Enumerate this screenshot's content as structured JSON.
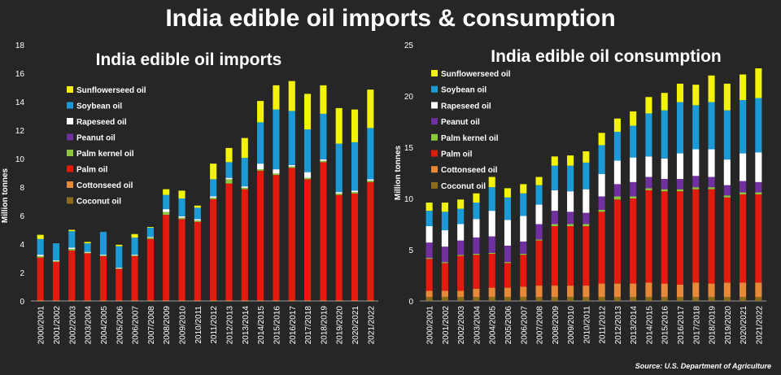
{
  "title": "India edible oil imports & consumption",
  "source": "Source: U.S. Department of Agriculture",
  "colors": {
    "Sunflowerseed oil": "#f2f20a",
    "Soybean oil": "#1c9ad6",
    "Rapeseed oil": "#ffffff",
    "Peanut oil": "#7030a0",
    "Palm kernel oil": "#8dc63f",
    "Palm oil": "#e41a0e",
    "Cottonseed oil": "#e8893a",
    "Coconut oil": "#8c6d1f"
  },
  "chart_data": [
    {
      "type": "bar",
      "stacked": true,
      "title": "India edible oil imports",
      "ylabel": "Million tonnes",
      "ylim": [
        0,
        18
      ],
      "yticks": [
        0,
        2,
        4,
        6,
        8,
        10,
        12,
        14,
        16,
        18
      ],
      "legend_placement": "top-left",
      "categories": [
        "2000/2001",
        "2001/2002",
        "2002/2003",
        "2003/2004",
        "2004/2005",
        "2005/2006",
        "2006/2007",
        "2007/2008",
        "2008/2009",
        "2009/2010",
        "2010/2011",
        "2011/2012",
        "2012/2013",
        "2013/2014",
        "2014/2015",
        "2015/2016",
        "2016/2017",
        "2017/2018",
        "2018/2019",
        "2019/2020",
        "2020/2021",
        "2021/2022"
      ],
      "legend": [
        "Sunflowerseed oil",
        "Soybean oil",
        "Rapeseed oil",
        "Peanut oil",
        "Palm kernel oil",
        "Palm oil",
        "Cottonseed oil",
        "Coconut oil"
      ],
      "series": [
        {
          "name": "Coconut oil",
          "values": [
            0,
            0,
            0,
            0,
            0,
            0,
            0,
            0,
            0,
            0,
            0,
            0,
            0,
            0,
            0,
            0,
            0,
            0,
            0,
            0,
            0,
            0
          ]
        },
        {
          "name": "Cottonseed oil",
          "values": [
            0.05,
            0.05,
            0.05,
            0.05,
            0.05,
            0.05,
            0.05,
            0.05,
            0.05,
            0.05,
            0.05,
            0.05,
            0.05,
            0.05,
            0.05,
            0.05,
            0.05,
            0.05,
            0.05,
            0.05,
            0.05,
            0.05
          ]
        },
        {
          "name": "Palm oil",
          "values": [
            3.0,
            2.7,
            3.5,
            3.3,
            3.1,
            2.2,
            3.1,
            4.3,
            6.0,
            5.7,
            5.5,
            7.1,
            8.2,
            7.8,
            9.1,
            8.8,
            9.3,
            8.5,
            9.7,
            7.4,
            7.5,
            8.3
          ]
        },
        {
          "name": "Palm kernel oil",
          "values": [
            0.1,
            0.05,
            0.1,
            0.05,
            0.05,
            0.05,
            0.05,
            0.1,
            0.2,
            0.1,
            0.1,
            0.1,
            0.3,
            0.1,
            0.1,
            0.1,
            0.1,
            0.1,
            0.1,
            0.1,
            0.1,
            0.1
          ]
        },
        {
          "name": "Peanut oil",
          "values": [
            0,
            0,
            0,
            0,
            0,
            0,
            0,
            0,
            0,
            0,
            0,
            0,
            0,
            0,
            0,
            0,
            0,
            0,
            0,
            0,
            0,
            0
          ]
        },
        {
          "name": "Rapeseed oil",
          "values": [
            0.1,
            0.05,
            0.1,
            0.05,
            0.05,
            0.05,
            0.05,
            0.05,
            0.2,
            0.1,
            0.1,
            0.1,
            0.1,
            0.1,
            0.4,
            0.3,
            0.1,
            0.4,
            0.1,
            0.1,
            0.1,
            0.1
          ]
        },
        {
          "name": "Soybean oil",
          "values": [
            1.1,
            1.2,
            1.15,
            0.6,
            1.6,
            1.5,
            1.2,
            0.65,
            1.0,
            1.25,
            0.8,
            1.2,
            1.1,
            2.0,
            2.9,
            4.2,
            3.8,
            3.0,
            3.2,
            3.4,
            3.4,
            3.6
          ]
        },
        {
          "name": "Sunflowerseed oil",
          "values": [
            0.3,
            0,
            0.1,
            0.1,
            0,
            0.1,
            0.25,
            0.05,
            0.4,
            0.55,
            0.15,
            1.1,
            1.0,
            1.4,
            1.5,
            1.7,
            2.1,
            2.5,
            2.0,
            2.5,
            2.3,
            2.7
          ]
        }
      ]
    },
    {
      "type": "bar",
      "stacked": true,
      "title": "India edible oil consumption",
      "ylabel": "Million tonnes",
      "ylim": [
        0,
        25
      ],
      "yticks": [
        0,
        5,
        10,
        15,
        20,
        25
      ],
      "legend_placement": "top-left",
      "categories": [
        "2000/2001",
        "2001/2002",
        "2002/2003",
        "2003/2004",
        "2004/2005",
        "2005/2006",
        "2006/2007",
        "2007/2008",
        "2008/2009",
        "2009/2010",
        "2010/2011",
        "2011/2012",
        "2012/2013",
        "2013/2014",
        "2014/2015",
        "2015/2016",
        "2016/2017",
        "2017/2018",
        "2018/2019",
        "2019/2020",
        "2020/2021",
        "2021/2022"
      ],
      "legend": [
        "Sunflowerseed oil",
        "Soybean oil",
        "Rapeseed oil",
        "Peanut oil",
        "Palm kernel oil",
        "Palm oil",
        "Cottonseed oil",
        "Coconut oil"
      ],
      "series": [
        {
          "name": "Coconut oil",
          "values": [
            0.4,
            0.4,
            0.4,
            0.4,
            0.4,
            0.4,
            0.4,
            0.4,
            0.4,
            0.4,
            0.4,
            0.4,
            0.4,
            0.4,
            0.4,
            0.4,
            0.4,
            0.4,
            0.4,
            0.4,
            0.4,
            0.4
          ]
        },
        {
          "name": "Cottonseed oil",
          "values": [
            0.6,
            0.6,
            0.6,
            0.8,
            0.9,
            0.9,
            1.0,
            1.1,
            1.1,
            1.1,
            1.1,
            1.3,
            1.3,
            1.3,
            1.4,
            1.3,
            1.2,
            1.4,
            1.3,
            1.4,
            1.4,
            1.4
          ]
        },
        {
          "name": "Palm oil",
          "values": [
            3.1,
            2.7,
            3.4,
            3.3,
            3.3,
            2.4,
            3.1,
            4.4,
            5.8,
            5.8,
            5.8,
            7.0,
            8.2,
            8.3,
            9.0,
            9.0,
            9.1,
            9.1,
            9.2,
            8.3,
            8.6,
            8.6
          ]
        },
        {
          "name": "Palm kernel oil",
          "values": [
            0.1,
            0.1,
            0.1,
            0.1,
            0.1,
            0.1,
            0.1,
            0.1,
            0.2,
            0.2,
            0.2,
            0.2,
            0.3,
            0.2,
            0.2,
            0.2,
            0.2,
            0.2,
            0.2,
            0.2,
            0.2,
            0.2
          ]
        },
        {
          "name": "Peanut oil",
          "values": [
            1.5,
            1.5,
            1.4,
            1.6,
            1.6,
            1.6,
            1.2,
            1.5,
            1.3,
            1.2,
            1.1,
            1.3,
            1.2,
            1.4,
            1.1,
            1.0,
            1.0,
            1.1,
            1.0,
            1.0,
            1.1,
            1.0
          ]
        },
        {
          "name": "Rapeseed oil",
          "values": [
            1.6,
            1.6,
            1.6,
            1.8,
            2.5,
            2.5,
            2.5,
            1.9,
            2.0,
            2.0,
            2.3,
            2.2,
            2.3,
            2.4,
            2.0,
            2.0,
            2.5,
            2.6,
            2.7,
            2.5,
            2.7,
            2.9
          ]
        },
        {
          "name": "Soybean oil",
          "values": [
            1.5,
            1.8,
            1.5,
            1.6,
            2.3,
            2.2,
            2.2,
            1.9,
            2.4,
            2.5,
            2.6,
            2.8,
            2.8,
            3.1,
            4.2,
            4.7,
            5.0,
            4.3,
            4.6,
            4.8,
            5.2,
            5.3
          ]
        },
        {
          "name": "Sunflowerseed oil",
          "values": [
            0.8,
            0.9,
            0.9,
            0.9,
            1.0,
            0.9,
            0.9,
            0.8,
            0.9,
            1.0,
            1.1,
            1.2,
            1.3,
            1.4,
            1.6,
            1.7,
            1.8,
            2.0,
            2.6,
            2.6,
            2.5,
            2.9
          ]
        }
      ]
    }
  ]
}
